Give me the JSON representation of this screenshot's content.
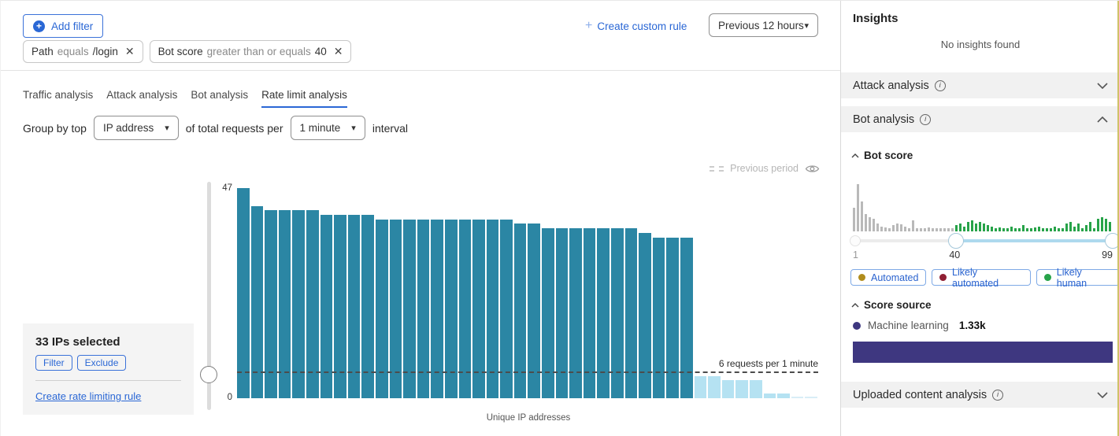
{
  "icons": {
    "plus": "+",
    "close": "✕",
    "caret_down": "▾",
    "info": "i"
  },
  "colors": {
    "accent_blue": "#2a67d5",
    "bar_teal": "#2b86a4",
    "bar_light_blue": "#b5e2f2",
    "bar_trace_blue": "#d9eef7",
    "hist_gray": "#b9b9b9",
    "hist_green": "#27a349",
    "score_source_purple": "#3e3780",
    "slider_range_blue": "#aed9ee"
  },
  "filter_bar": {
    "add_filter_label": "Add filter",
    "chips": [
      {
        "field": "Path",
        "operator": "equals",
        "value": "/login"
      },
      {
        "field": "Bot score",
        "operator": "greater than or equals",
        "value": "40"
      }
    ],
    "create_custom_rule_label": "Create custom rule",
    "time_range_label": "Previous 12 hours"
  },
  "tabs": [
    {
      "label": "Traffic analysis",
      "active": false
    },
    {
      "label": "Attack analysis",
      "active": false
    },
    {
      "label": "Bot analysis",
      "active": false
    },
    {
      "label": "Rate limit analysis",
      "active": true
    }
  ],
  "group_by": {
    "prefix": "Group by top",
    "dimension_value": "IP address",
    "middle": "of total requests per",
    "interval_value": "1 minute",
    "suffix": "interval"
  },
  "selection_panel": {
    "title": "33 IPs selected",
    "filter_label": "Filter",
    "exclude_label": "Exclude",
    "link_label": "Create rate limiting rule"
  },
  "sidebar": {
    "title": "Insights",
    "empty_message": "No insights found",
    "attack_section_label": "Attack analysis",
    "bot_section_label": "Bot analysis",
    "uploaded_section_label": "Uploaded content analysis",
    "bot_analysis": {
      "bot_score_label": "Bot score",
      "score_source_label": "Score source",
      "badges": [
        {
          "label": "Automated",
          "color": "#b08c1c"
        },
        {
          "label": "Likely automated",
          "color": "#8f1f33"
        },
        {
          "label": "Likely human",
          "color": "#27a349"
        }
      ],
      "score_source": {
        "name": "Machine learning",
        "value": "1.33k",
        "color": "#3e3780"
      }
    }
  },
  "chart_data": [
    {
      "name": "requests-per-unique-ip",
      "type": "bar",
      "title": "",
      "xlabel": "Unique IP addresses",
      "ylabel": "",
      "ylim": [
        0,
        47
      ],
      "y_ticks": [
        0,
        47
      ],
      "grid": false,
      "threshold": {
        "value": 6,
        "label": "6 requests per 1 minute"
      },
      "legend": {
        "label": "Previous period",
        "position": "top-right"
      },
      "series": [
        {
          "name": "selected",
          "color": "#2b86a4",
          "values": [
            47,
            43,
            42,
            42,
            42,
            42,
            41,
            41,
            41,
            41,
            40,
            40,
            40,
            40,
            40,
            40,
            40,
            40,
            40,
            40,
            39,
            39,
            38,
            38,
            38,
            38,
            38,
            38,
            38,
            37,
            36,
            36,
            36
          ]
        },
        {
          "name": "below-threshold",
          "color": "#b5e2f2",
          "values": [
            5,
            5,
            4,
            4,
            4,
            1,
            1
          ]
        },
        {
          "name": "trace",
          "color": "#d9eef7",
          "values": [
            0.3,
            0.3
          ]
        }
      ]
    },
    {
      "name": "bot-score-distribution",
      "type": "bar",
      "x_range": [
        1,
        99
      ],
      "slider": {
        "min": 1,
        "lower": 40,
        "upper": 99,
        "max": 99
      },
      "series": [
        {
          "name": "score-below-40",
          "color": "#b9b9b9",
          "values": [
            30,
            60,
            38,
            22,
            18,
            16,
            10,
            6,
            5,
            4,
            8,
            10,
            9,
            6,
            4,
            14,
            4,
            4,
            4,
            5,
            4,
            4,
            4,
            4,
            4,
            4
          ]
        },
        {
          "name": "score-40-plus",
          "color": "#27a349",
          "values": [
            8,
            10,
            6,
            12,
            14,
            10,
            12,
            10,
            8,
            6,
            4,
            5,
            4,
            4,
            6,
            4,
            4,
            8,
            4,
            4,
            5,
            6,
            4,
            4,
            4,
            6,
            4,
            4,
            10,
            12,
            6,
            10,
            4,
            8,
            12,
            4,
            16,
            18,
            16,
            12
          ]
        }
      ]
    }
  ]
}
